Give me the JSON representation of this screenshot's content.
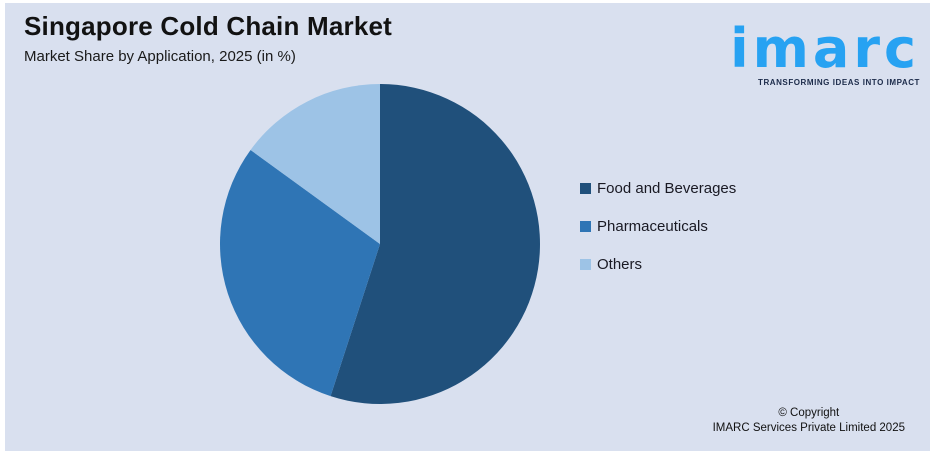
{
  "header": {
    "title": "Singapore Cold Chain Market",
    "subtitle": "Market Share by Application, 2025 (in %)"
  },
  "logo": {
    "wordmark": "imarc",
    "tagline": "TRANSFORMING IDEAS INTO IMPACT",
    "brand_color": "#27A2F2",
    "tagline_color": "#1C2B4A"
  },
  "chart_data": {
    "type": "pie",
    "title": "Singapore Cold Chain Market",
    "subtitle": "Market Share by Application, 2025 (in %)",
    "unit": "%",
    "start_angle_deg": 0,
    "direction": "clockwise",
    "legend_position": "right",
    "data_labels": false,
    "slices": [
      {
        "label": "Food and Beverages",
        "value": 55,
        "color": "#20507B"
      },
      {
        "label": "Pharmaceuticals",
        "value": 30,
        "color": "#2F75B5"
      },
      {
        "label": "Others",
        "value": 15,
        "color": "#9DC3E6"
      }
    ]
  },
  "footer": {
    "line1": "© Copyright",
    "line2": "IMARC Services Private Limited 2025"
  },
  "canvas": {
    "background": "#D9E0EF",
    "frame": "#FFFFFF"
  }
}
